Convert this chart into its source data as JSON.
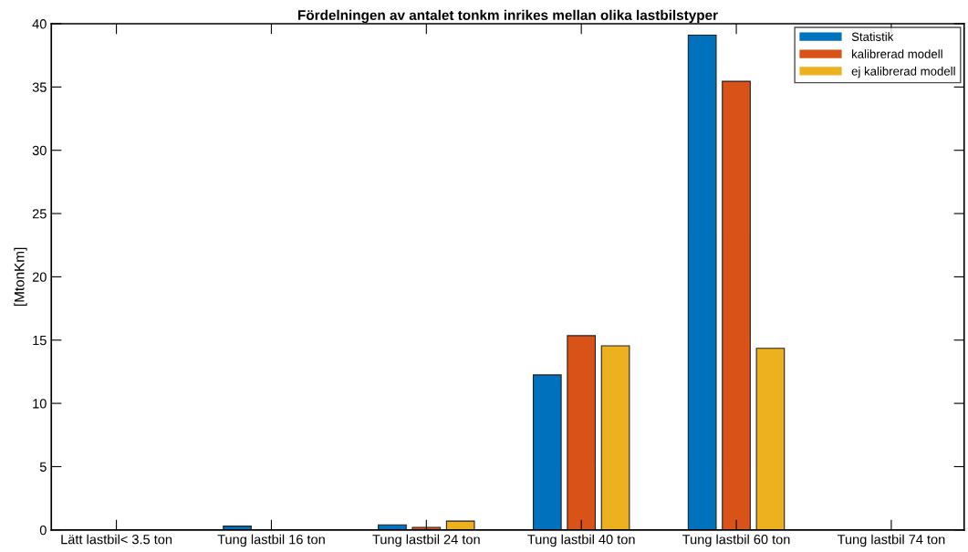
{
  "chart_data": {
    "type": "bar",
    "title": "Fördelningen av antalet tonkm inrikes mellan olika lastbilstyper",
    "ylabel": "[MtonKm]",
    "categories": [
      "Lätt lastbil< 3.5 ton",
      "Tung lastbil 16 ton",
      "Tung lastbil 24 ton",
      "Tung lastbil 40 ton",
      "Tung lastbil 60 ton",
      "Tung lastbil 74 ton"
    ],
    "series": [
      {
        "name": "Statistik",
        "color": "#0072bd",
        "values": [
          0,
          0.3,
          0.4,
          12.25,
          39.1,
          0
        ]
      },
      {
        "name": "kalibrerad modell",
        "color": "#d95319",
        "values": [
          0,
          0,
          0.2,
          15.35,
          35.45,
          0
        ]
      },
      {
        "name": "ej kalibrerad modell",
        "color": "#edb120",
        "values": [
          0,
          0,
          0.7,
          14.55,
          14.35,
          0
        ]
      }
    ],
    "ylim": [
      0,
      40
    ],
    "yticks": [
      0,
      5,
      10,
      15,
      20,
      25,
      30,
      35,
      40
    ],
    "grid": false,
    "legend": "top right"
  }
}
